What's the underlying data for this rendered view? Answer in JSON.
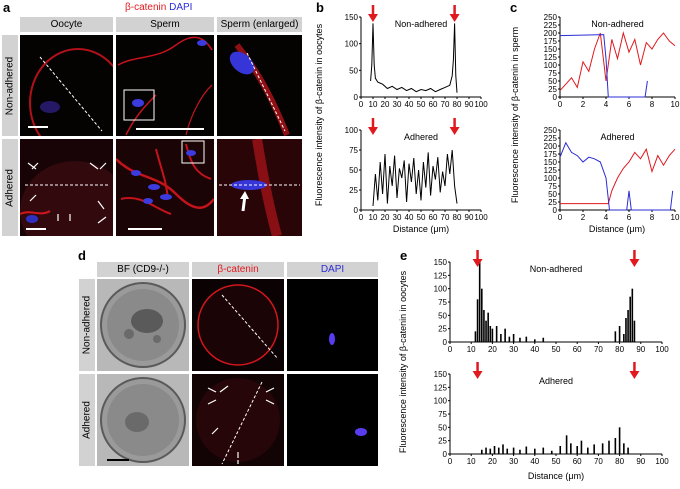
{
  "panel_a": {
    "label": "a",
    "legend": {
      "catenin": "β-catenin",
      "dapi": "DAPI"
    },
    "columns": [
      "Oocyte",
      "Sperm",
      "Sperm (enlarged)"
    ],
    "rows": [
      "Non-adhered",
      "Adhered"
    ]
  },
  "panel_b": {
    "label": "b"
  },
  "panel_c": {
    "label": "c"
  },
  "panel_d": {
    "label": "d",
    "columns": [
      "BF (CD9-/-)",
      "β-catenin",
      "DAPI"
    ],
    "rows": [
      "Non-adhered",
      "Adhered"
    ]
  },
  "panel_e": {
    "label": "e"
  },
  "colors": {
    "catenin": "#e0191e",
    "dapi": "#2b2bd6",
    "arrow": "#e0191e",
    "header_bg": "#d2d2d2"
  },
  "chart_data": [
    {
      "id": "b",
      "type": "line",
      "ylabel": "Fluorescence intensity of β-catenin in oocytes",
      "xlabel": "Distance (μm)",
      "xlim": [
        0,
        100
      ],
      "xticks": [
        0,
        10,
        20,
        30,
        40,
        50,
        60,
        70,
        80,
        90,
        100
      ],
      "arrows_x": [
        10,
        78
      ],
      "subplots": [
        {
          "title": "Non-adhered",
          "ylim": [
            0,
            150
          ],
          "yticks": [
            0,
            50,
            100,
            150
          ],
          "series": [
            {
              "color": "#000000",
              "x": [
                8,
                9,
                10,
                11,
                12,
                14,
                18,
                22,
                26,
                30,
                34,
                38,
                42,
                46,
                50,
                54,
                58,
                62,
                66,
                70,
                74,
                76,
                77,
                78,
                79,
                80
              ],
              "y": [
                30,
                60,
                138,
                60,
                35,
                28,
                24,
                16,
                20,
                14,
                18,
                12,
                16,
                10,
                14,
                12,
                16,
                10,
                14,
                18,
                22,
                40,
                70,
                138,
                40,
                8
              ]
            }
          ]
        },
        {
          "title": "Adhered",
          "ylim": [
            0,
            100
          ],
          "yticks": [
            0,
            25,
            50,
            75,
            100
          ],
          "series": [
            {
              "color": "#000000",
              "x": [
                10,
                12,
                14,
                16,
                18,
                20,
                22,
                24,
                26,
                28,
                30,
                32,
                34,
                36,
                38,
                40,
                42,
                44,
                46,
                48,
                50,
                52,
                54,
                56,
                58,
                60,
                62,
                64,
                66,
                68,
                70,
                72,
                74,
                76,
                78,
                80
              ],
              "y": [
                5,
                45,
                12,
                60,
                20,
                70,
                8,
                55,
                30,
                68,
                15,
                52,
                40,
                62,
                10,
                58,
                35,
                65,
                20,
                50,
                12,
                60,
                28,
                72,
                18,
                55,
                38,
                66,
                22,
                48,
                30,
                70,
                45,
                75,
                30,
                8
              ]
            }
          ]
        }
      ]
    },
    {
      "id": "c",
      "type": "line",
      "ylabel": "Fluorescence intensity of β-catenin in sperm",
      "xlabel": "Distance (μm)",
      "xlim": [
        0,
        10
      ],
      "xticks": [
        0,
        2,
        4,
        6,
        8,
        10
      ],
      "subplots": [
        {
          "title": "Non-adhered",
          "ylim": [
            0,
            250
          ],
          "yticks": [
            0,
            25,
            50,
            75,
            100,
            125,
            150,
            175,
            200,
            225,
            250
          ],
          "series": [
            {
              "name": "β-catenin",
              "color": "#e0191e",
              "x": [
                0,
                0.5,
                1,
                1.5,
                2,
                2.5,
                3,
                3.5,
                4,
                4.5,
                5,
                5.5,
                6,
                6.5,
                7,
                7.5,
                8,
                8.5,
                9,
                9.5,
                10
              ],
              "y": [
                20,
                40,
                60,
                30,
                110,
                80,
                150,
                200,
                50,
                180,
                120,
                200,
                140,
                180,
                100,
                170,
                150,
                180,
                200,
                175,
                160
              ]
            },
            {
              "name": "DAPI",
              "color": "#2b2bd6",
              "x": [
                0,
                3.8,
                4.0,
                4.2,
                7.4,
                7.6
              ],
              "y": [
                192,
                195,
                120,
                0,
                0,
                50
              ]
            }
          ]
        },
        {
          "title": "Adhered",
          "ylim": [
            0,
            250
          ],
          "yticks": [
            0,
            25,
            50,
            75,
            100,
            125,
            150,
            175,
            200,
            225,
            250
          ],
          "series": [
            {
              "name": "β-catenin",
              "color": "#e0191e",
              "x": [
                0,
                4.2,
                4.5,
                5,
                5.5,
                6,
                6.5,
                7,
                7.5,
                8,
                8.5,
                9,
                9.5,
                10
              ],
              "y": [
                20,
                20,
                60,
                100,
                130,
                150,
                180,
                160,
                190,
                120,
                170,
                140,
                170,
                190
              ]
            },
            {
              "name": "DAPI",
              "color": "#2b2bd6",
              "x": [
                0,
                0.5,
                1,
                1.5,
                2,
                2.5,
                3,
                3.5,
                4,
                4.3,
                5.8,
                6.0,
                6.2,
                9.6,
                9.8
              ],
              "y": [
                165,
                210,
                180,
                170,
                150,
                165,
                160,
                150,
                100,
                0,
                0,
                60,
                0,
                0,
                60
              ]
            }
          ]
        }
      ]
    },
    {
      "id": "e",
      "type": "bar",
      "ylabel": "Fluorescence intensity of β-catenin in oocytes",
      "xlabel": "Distance (μm)",
      "xlim": [
        0,
        100
      ],
      "xticks": [
        0,
        10,
        20,
        30,
        40,
        50,
        60,
        70,
        80,
        90,
        100
      ],
      "arrows_x": [
        13,
        87
      ],
      "subplots": [
        {
          "title": "Non-adhered",
          "ylim": [
            0,
            150
          ],
          "yticks": [
            0,
            25,
            50,
            75,
            100,
            125,
            150
          ],
          "series": [
            {
              "color": "#000000",
              "x": [
                12,
                13,
                14,
                15,
                16,
                17,
                18,
                19,
                20,
                22,
                24,
                26,
                28,
                30,
                33,
                36,
                40,
                44,
                78,
                80,
                82,
                83,
                84,
                85,
                86,
                87
              ],
              "y": [
                20,
                80,
                150,
                100,
                60,
                40,
                55,
                30,
                25,
                30,
                15,
                25,
                10,
                15,
                8,
                10,
                5,
                8,
                20,
                30,
                15,
                45,
                60,
                85,
                100,
                40
              ]
            }
          ]
        },
        {
          "title": "Adhered",
          "ylim": [
            0,
            150
          ],
          "yticks": [
            0,
            25,
            50,
            75,
            100,
            125,
            150
          ],
          "series": [
            {
              "color": "#000000",
              "x": [
                15,
                17,
                19,
                21,
                23,
                25,
                27,
                30,
                33,
                36,
                40,
                44,
                48,
                52,
                55,
                57,
                60,
                62,
                65,
                68,
                72,
                75,
                78,
                80,
                82,
                84
              ],
              "y": [
                8,
                12,
                10,
                15,
                12,
                18,
                10,
                12,
                8,
                14,
                10,
                12,
                6,
                15,
                35,
                20,
                15,
                25,
                12,
                18,
                20,
                25,
                30,
                50,
                20,
                12
              ]
            }
          ]
        }
      ]
    }
  ]
}
